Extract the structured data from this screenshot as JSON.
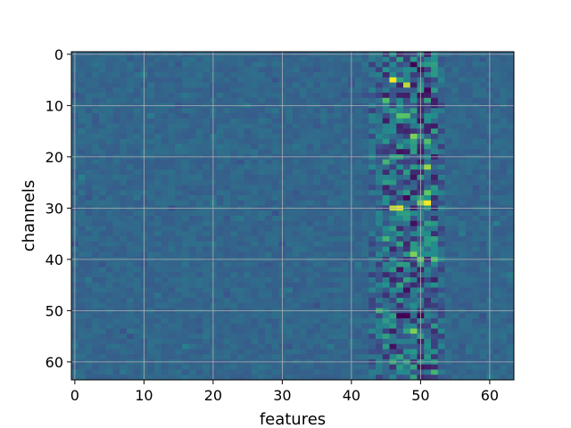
{
  "chart_data": {
    "type": "heatmap",
    "title": "",
    "xlabel": "features",
    "ylabel": "channels",
    "rows": 64,
    "cols": 64,
    "x_ticks": [
      0,
      10,
      20,
      30,
      40,
      50,
      60
    ],
    "y_ticks": [
      0,
      10,
      20,
      30,
      40,
      50,
      60
    ],
    "x_range": [
      -0.5,
      63.5
    ],
    "y_range": [
      -0.5,
      63.5
    ],
    "y_inverted": true,
    "grid": true,
    "colormap": "viridis",
    "background_level": 0.33,
    "description_of_values": "Most cells near a uniform mid-blue level with small noise; strong positive and negative values concentrated in feature columns ~44-53.",
    "hot_cells": [
      {
        "row": 5,
        "col": 46,
        "value": 1.0
      },
      {
        "row": 6,
        "col": 48,
        "value": 0.9
      },
      {
        "row": 9,
        "col": 45,
        "value": 0.7
      },
      {
        "row": 12,
        "col": 47,
        "value": 0.72
      },
      {
        "row": 12,
        "col": 48,
        "value": 0.72
      },
      {
        "row": 16,
        "col": 49,
        "value": 0.8
      },
      {
        "row": 17,
        "col": 51,
        "value": 0.7
      },
      {
        "row": 22,
        "col": 51,
        "value": 0.85
      },
      {
        "row": 21,
        "col": 45,
        "value": 0.65
      },
      {
        "row": 27,
        "col": 51,
        "value": 0.75
      },
      {
        "row": 29,
        "col": 51,
        "value": 1.0
      },
      {
        "row": 29,
        "col": 50,
        "value": 0.8
      },
      {
        "row": 30,
        "col": 46,
        "value": 0.9
      },
      {
        "row": 30,
        "col": 47,
        "value": 0.95
      },
      {
        "row": 36,
        "col": 45,
        "value": 0.65
      },
      {
        "row": 39,
        "col": 49,
        "value": 0.8
      },
      {
        "row": 40,
        "col": 50,
        "value": 0.75
      },
      {
        "row": 40,
        "col": 52,
        "value": 0.7
      },
      {
        "row": 50,
        "col": 44,
        "value": 0.62
      },
      {
        "row": 54,
        "col": 49,
        "value": 0.8
      },
      {
        "row": 60,
        "col": 46,
        "value": 0.6
      },
      {
        "row": 62,
        "col": 52,
        "value": 0.65
      }
    ],
    "cold_cells": [
      {
        "row": 2,
        "col": 49,
        "value": 0.0
      },
      {
        "row": 3,
        "col": 50,
        "value": 0.05
      },
      {
        "row": 7,
        "col": 51,
        "value": 0.02
      },
      {
        "row": 8,
        "col": 50,
        "value": 0.05
      },
      {
        "row": 13,
        "col": 50,
        "value": 0.05
      },
      {
        "row": 14,
        "col": 52,
        "value": 0.08
      },
      {
        "row": 19,
        "col": 47,
        "value": 0.05
      },
      {
        "row": 24,
        "col": 49,
        "value": 0.06
      },
      {
        "row": 28,
        "col": 48,
        "value": 0.02
      },
      {
        "row": 33,
        "col": 49,
        "value": 0.05
      },
      {
        "row": 42,
        "col": 47,
        "value": 0.06
      },
      {
        "row": 46,
        "col": 48,
        "value": 0.05
      },
      {
        "row": 51,
        "col": 47,
        "value": 0.0
      },
      {
        "row": 51,
        "col": 48,
        "value": 0.0
      },
      {
        "row": 51,
        "col": 50,
        "value": 0.02
      },
      {
        "row": 57,
        "col": 46,
        "value": 0.05
      },
      {
        "row": 61,
        "col": 50,
        "value": 0.06
      }
    ]
  }
}
